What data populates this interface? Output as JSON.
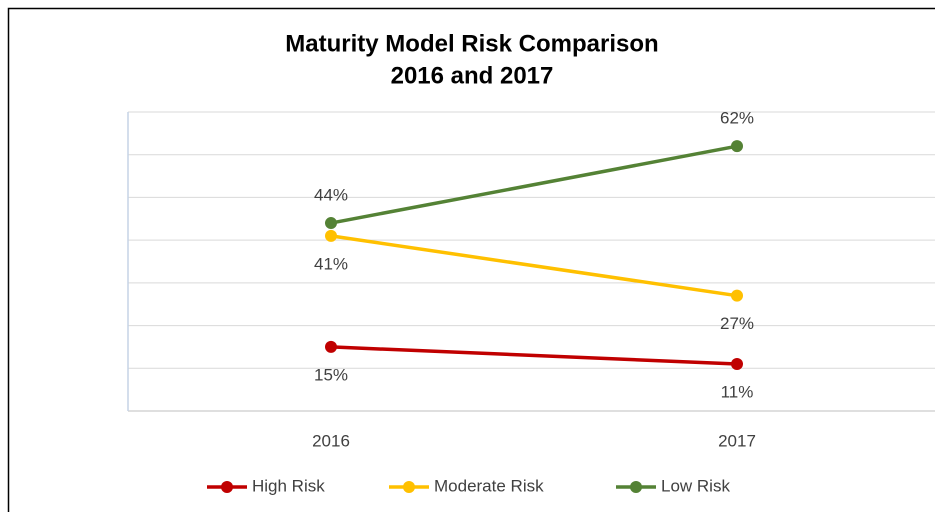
{
  "chart_data": {
    "type": "line",
    "title": [
      "Maturity Model Risk Comparison",
      "2016 and 2017"
    ],
    "categories": [
      "2016",
      "2017"
    ],
    "series": [
      {
        "name": "High Risk",
        "color": "#c00000",
        "values": [
          15,
          11
        ],
        "value_labels": [
          "15%",
          "11%"
        ],
        "label_position": "below"
      },
      {
        "name": "Moderate Risk",
        "color": "#ffc000",
        "values": [
          41,
          27
        ],
        "value_labels": [
          "41%",
          "27%"
        ],
        "label_position": "below"
      },
      {
        "name": "Low Risk",
        "color": "#548235",
        "values": [
          44,
          62
        ],
        "value_labels": [
          "44%",
          "62%"
        ],
        "label_position": "above"
      }
    ],
    "ylim": [
      0,
      70
    ],
    "yticks": [
      0,
      10,
      20,
      30,
      40,
      50,
      60,
      70
    ],
    "grid": true,
    "legend": "bottom"
  }
}
